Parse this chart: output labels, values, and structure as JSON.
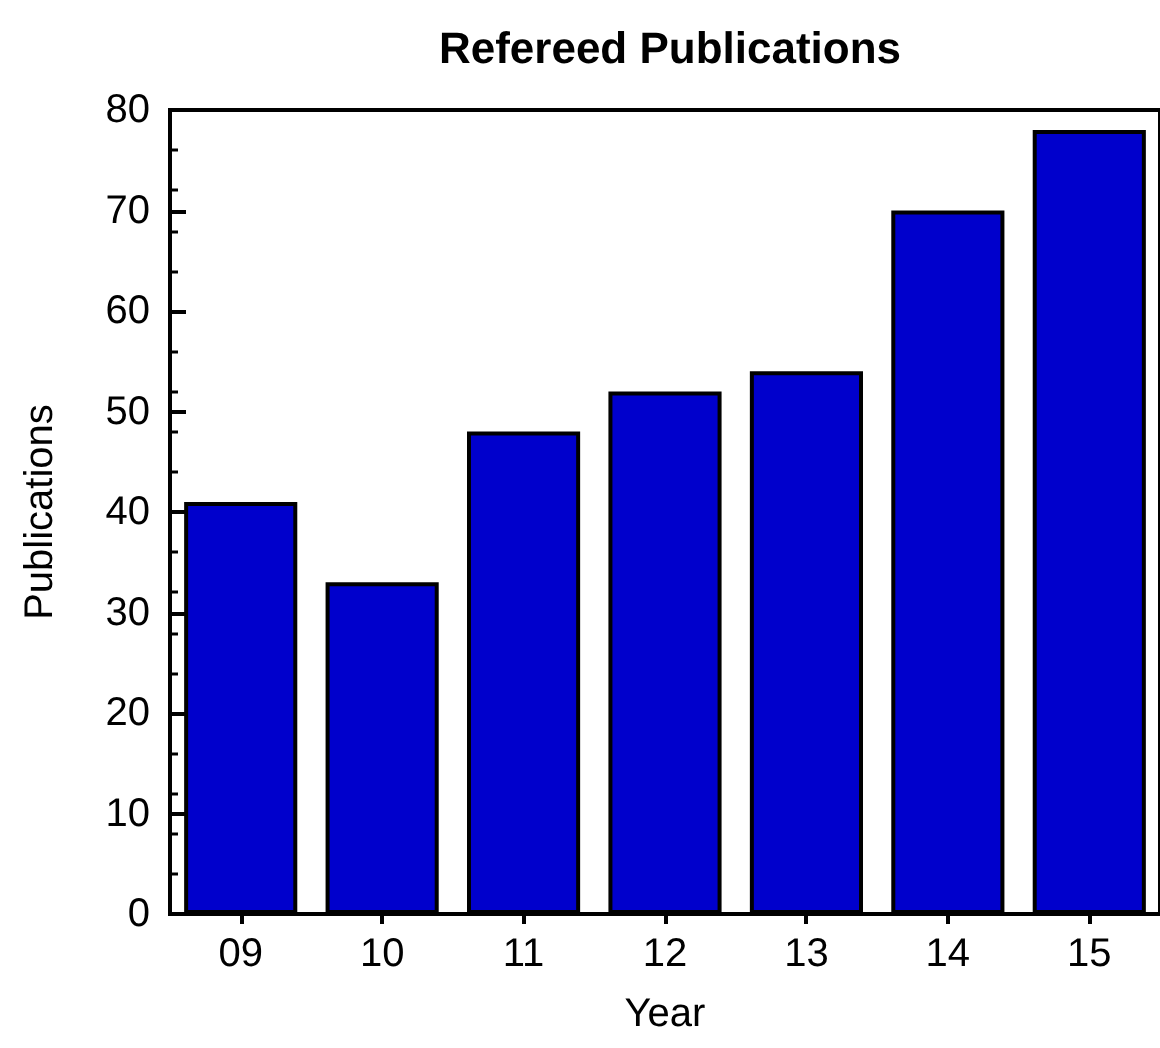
{
  "chart_data": {
    "type": "bar",
    "title": "Refereed Publications",
    "xlabel": "Year",
    "ylabel": "Publications",
    "categories": [
      "09",
      "10",
      "11",
      "12",
      "13",
      "14",
      "15"
    ],
    "values": [
      41,
      33,
      48,
      52,
      54,
      70,
      78
    ],
    "color": "#0000cc",
    "ylim": [
      0,
      80
    ],
    "yticks": [
      0,
      10,
      20,
      30,
      40,
      50,
      60,
      70,
      80
    ]
  }
}
